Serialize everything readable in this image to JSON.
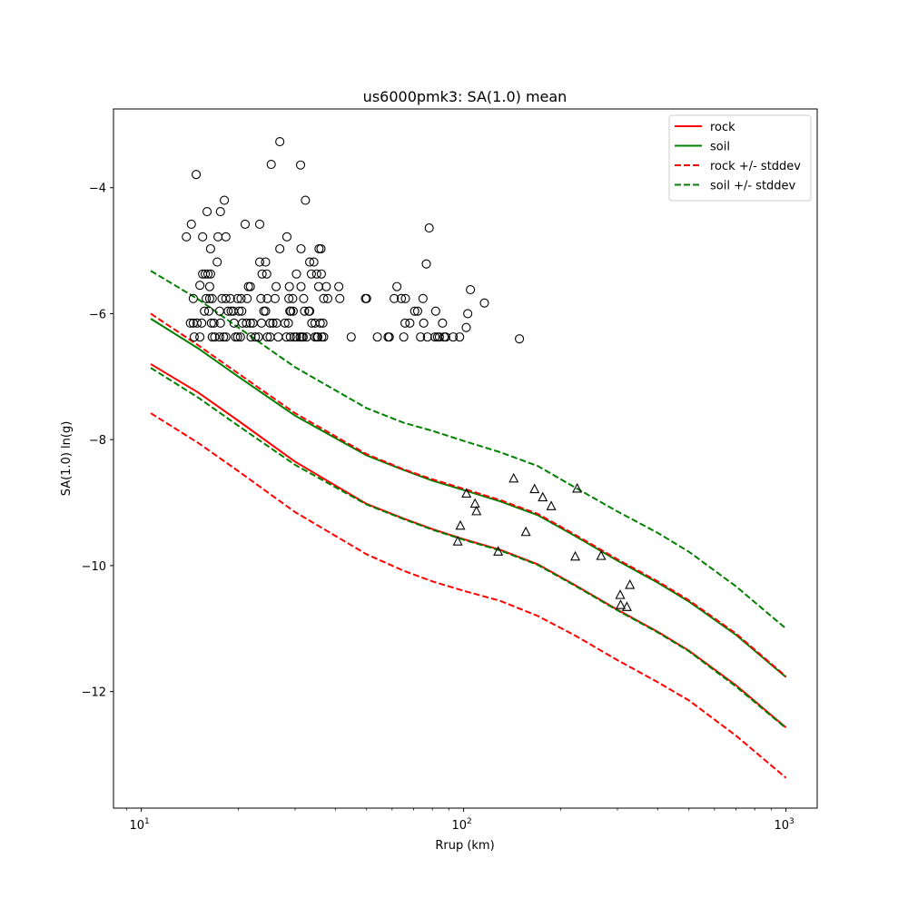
{
  "chart_data": {
    "type": "scatter",
    "title": "us6000pmk3: SA(1.0) mean",
    "xlabel": "Rrup (km)",
    "ylabel": "SA(1.0) ln(g)",
    "xscale": "log",
    "xlim": [
      8.2,
      1250
    ],
    "ylim": [
      -13.85,
      -2.75
    ],
    "xticks": [
      {
        "value": 10,
        "base": "10",
        "exp": "1"
      },
      {
        "value": 100,
        "base": "10",
        "exp": "2"
      },
      {
        "value": 1000,
        "base": "10",
        "exp": "3"
      }
    ],
    "yticks": [
      -12,
      -10,
      -8,
      -6,
      -4
    ],
    "ytick_labels": [
      "−12",
      "−10",
      "−8",
      "−6",
      "−4"
    ],
    "legend": {
      "placement": "top-right",
      "entries": [
        {
          "label": "rock",
          "color": "#ff0000",
          "style": "solid"
        },
        {
          "label": "soil",
          "color": "#008000",
          "style": "solid"
        },
        {
          "label": "rock +/- stddev",
          "color": "#ff0000",
          "style": "dashed"
        },
        {
          "label": "soil +/- stddev",
          "color": "#008000",
          "style": "dashed"
        }
      ]
    },
    "x": [
      10.7,
      15,
      20,
      30,
      50,
      65,
      80,
      100,
      130,
      170,
      220,
      300,
      400,
      500,
      700,
      1000
    ],
    "series": [
      {
        "name": "rock",
        "color": "#ff0000",
        "style": "solid",
        "y": [
          -6.8,
          -7.25,
          -7.7,
          -8.35,
          -9.02,
          -9.25,
          -9.42,
          -9.58,
          -9.75,
          -9.98,
          -10.3,
          -10.7,
          -11.05,
          -11.35,
          -11.9,
          -12.57
        ]
      },
      {
        "name": "soil",
        "color": "#008000",
        "style": "solid",
        "y": [
          -6.08,
          -6.55,
          -7.0,
          -7.62,
          -8.25,
          -8.48,
          -8.65,
          -8.8,
          -8.98,
          -9.2,
          -9.52,
          -9.92,
          -10.27,
          -10.57,
          -11.1,
          -11.77
        ]
      },
      {
        "name": "rock +/- stddev (upper)",
        "color": "#ff0000",
        "style": "dashed",
        "y": [
          -6.0,
          -6.5,
          -6.95,
          -7.58,
          -8.23,
          -8.47,
          -8.63,
          -8.78,
          -8.96,
          -9.18,
          -9.5,
          -9.9,
          -10.25,
          -10.55,
          -11.08,
          -11.76
        ]
      },
      {
        "name": "rock +/- stddev (lower)",
        "color": "#ff0000",
        "style": "dashed",
        "y": [
          -7.58,
          -8.05,
          -8.5,
          -9.15,
          -9.82,
          -10.08,
          -10.25,
          -10.4,
          -10.56,
          -10.8,
          -11.1,
          -11.5,
          -11.85,
          -12.14,
          -12.7,
          -13.37
        ]
      },
      {
        "name": "soil +/- stddev (upper)",
        "color": "#008000",
        "style": "dashed",
        "y": [
          -5.32,
          -5.77,
          -6.22,
          -6.85,
          -7.5,
          -7.73,
          -7.86,
          -8.02,
          -8.2,
          -8.42,
          -8.75,
          -9.14,
          -9.48,
          -9.78,
          -10.33,
          -11.0
        ]
      },
      {
        "name": "soil +/- stddev (lower)",
        "color": "#008000",
        "style": "dashed",
        "y": [
          -6.86,
          -7.33,
          -7.78,
          -8.4,
          -9.03,
          -9.26,
          -9.43,
          -9.59,
          -9.76,
          -9.99,
          -10.31,
          -10.71,
          -11.06,
          -11.36,
          -11.92,
          -12.58
        ]
      }
    ],
    "markers": [
      {
        "name": "observed (circle)",
        "shape": "circle",
        "points": [
          [
            13.8,
            -4.78
          ],
          [
            14.3,
            -4.58
          ],
          [
            14.8,
            -3.79
          ],
          [
            14.2,
            -6.15
          ],
          [
            14.5,
            -6.15
          ],
          [
            14.9,
            -6.15
          ],
          [
            14.6,
            -6.37
          ],
          [
            15.2,
            -6.37
          ],
          [
            14.5,
            -5.76
          ],
          [
            15.2,
            -5.55
          ],
          [
            15.5,
            -4.78
          ],
          [
            15.5,
            -5.37
          ],
          [
            15.8,
            -5.37
          ],
          [
            16.1,
            -5.37
          ],
          [
            16.4,
            -5.37
          ],
          [
            15.7,
            -5.96
          ],
          [
            15.9,
            -5.76
          ],
          [
            16.3,
            -5.76
          ],
          [
            16.6,
            -5.76
          ],
          [
            16.2,
            -5.96
          ],
          [
            16.5,
            -6.15
          ],
          [
            16.8,
            -6.15
          ],
          [
            15.4,
            -6.15
          ],
          [
            16.0,
            -4.38
          ],
          [
            16.4,
            -4.97
          ],
          [
            16.3,
            -5.57
          ],
          [
            16.6,
            -6.37
          ],
          [
            16.9,
            -6.37
          ],
          [
            17.2,
            -5.18
          ],
          [
            17.3,
            -4.78
          ],
          [
            17.6,
            -4.38
          ],
          [
            17.5,
            -5.96
          ],
          [
            17.8,
            -5.76
          ],
          [
            17.6,
            -6.15
          ],
          [
            17.5,
            -6.37
          ],
          [
            18.0,
            -6.37
          ],
          [
            18.3,
            -6.37
          ],
          [
            18.1,
            -4.2
          ],
          [
            18.3,
            -4.78
          ],
          [
            18.3,
            -5.76
          ],
          [
            18.6,
            -5.96
          ],
          [
            19.0,
            -5.96
          ],
          [
            19.3,
            -5.96
          ],
          [
            18.9,
            -5.76
          ],
          [
            19.4,
            -6.15
          ],
          [
            19.6,
            -6.37
          ],
          [
            19.9,
            -6.37
          ],
          [
            19.9,
            -5.76
          ],
          [
            20.4,
            -5.76
          ],
          [
            20.1,
            -5.96
          ],
          [
            20.5,
            -5.96
          ],
          [
            20.6,
            -6.15
          ],
          [
            20.3,
            -6.37
          ],
          [
            21.0,
            -4.58
          ],
          [
            21.3,
            -5.76
          ],
          [
            21.5,
            -5.57
          ],
          [
            21.8,
            -5.57
          ],
          [
            21.2,
            -6.15
          ],
          [
            21.8,
            -6.15
          ],
          [
            22.2,
            -6.15
          ],
          [
            21.9,
            -6.37
          ],
          [
            22.6,
            -6.37
          ],
          [
            23.1,
            -6.37
          ],
          [
            23.3,
            -4.58
          ],
          [
            23.3,
            -5.18
          ],
          [
            23.7,
            -5.37
          ],
          [
            24.5,
            -5.37
          ],
          [
            24.3,
            -5.18
          ],
          [
            23.5,
            -5.76
          ],
          [
            24.6,
            -5.76
          ],
          [
            24.0,
            -5.96
          ],
          [
            24.3,
            -5.96
          ],
          [
            23.6,
            -6.15
          ],
          [
            25.1,
            -6.15
          ],
          [
            25.6,
            -6.15
          ],
          [
            26.3,
            -6.15
          ],
          [
            24.6,
            -6.37
          ],
          [
            25.1,
            -6.37
          ],
          [
            25.3,
            -3.63
          ],
          [
            26.2,
            -5.57
          ],
          [
            26.0,
            -5.76
          ],
          [
            26.6,
            -6.37
          ],
          [
            26.9,
            -3.27
          ],
          [
            26.9,
            -4.97
          ],
          [
            27.9,
            -6.15
          ],
          [
            28.3,
            -4.78
          ],
          [
            28.6,
            -6.15
          ],
          [
            28.8,
            -5.57
          ],
          [
            28.9,
            -5.96
          ],
          [
            28.7,
            -5.76
          ],
          [
            29.1,
            -5.96
          ],
          [
            29.6,
            -5.96
          ],
          [
            29.5,
            -5.76
          ],
          [
            28.2,
            -6.37
          ],
          [
            29.0,
            -6.37
          ],
          [
            29.8,
            -6.37
          ],
          [
            30.3,
            -6.37
          ],
          [
            30.3,
            -5.37
          ],
          [
            31.1,
            -6.37
          ],
          [
            31.5,
            -6.37
          ],
          [
            31.8,
            -6.37
          ],
          [
            31.2,
            -3.64
          ],
          [
            31.3,
            -4.97
          ],
          [
            31.3,
            -5.57
          ],
          [
            31.9,
            -5.76
          ],
          [
            32.3,
            -4.2
          ],
          [
            32.1,
            -5.96
          ],
          [
            32.6,
            -6.37
          ],
          [
            33.1,
            -5.96
          ],
          [
            33.3,
            -5.96
          ],
          [
            33.3,
            -5.18
          ],
          [
            33.7,
            -5.37
          ],
          [
            34.3,
            -5.18
          ],
          [
            33.8,
            -6.15
          ],
          [
            34.6,
            -6.37
          ],
          [
            35.0,
            -5.37
          ],
          [
            34.6,
            -6.15
          ],
          [
            35.1,
            -6.37
          ],
          [
            35.3,
            -6.37
          ],
          [
            35.5,
            -5.57
          ],
          [
            35.6,
            -4.97
          ],
          [
            36.1,
            -4.97
          ],
          [
            35.9,
            -6.15
          ],
          [
            36.2,
            -5.37
          ],
          [
            36.6,
            -6.15
          ],
          [
            36.8,
            -5.76
          ],
          [
            36.3,
            -6.37
          ],
          [
            36.8,
            -6.37
          ],
          [
            37.5,
            -5.57
          ],
          [
            37.9,
            -5.76
          ],
          [
            41.0,
            -5.57
          ],
          [
            41.3,
            -5.76
          ],
          [
            44.8,
            -6.37
          ],
          [
            49.6,
            -5.76
          ],
          [
            50.0,
            -5.76
          ],
          [
            54.0,
            -6.37
          ],
          [
            58.3,
            -6.37
          ],
          [
            58.8,
            -6.37
          ],
          [
            60.9,
            -5.76
          ],
          [
            62.1,
            -5.57
          ],
          [
            64.1,
            -5.76
          ],
          [
            66.0,
            -5.76
          ],
          [
            65.8,
            -6.15
          ],
          [
            65.2,
            -6.37
          ],
          [
            68.1,
            -6.15
          ],
          [
            70.5,
            -5.96
          ],
          [
            72.0,
            -5.96
          ],
          [
            73.5,
            -6.37
          ],
          [
            74.8,
            -5.76
          ],
          [
            75.2,
            -6.15
          ],
          [
            77.2,
            -6.37
          ],
          [
            76.6,
            -5.21
          ],
          [
            78.2,
            -4.64
          ],
          [
            81.9,
            -5.96
          ],
          [
            81.5,
            -6.37
          ],
          [
            83.0,
            -6.37
          ],
          [
            84.1,
            -6.37
          ],
          [
            86.0,
            -6.15
          ],
          [
            87.0,
            -6.37
          ],
          [
            88.0,
            -6.37
          ],
          [
            92.8,
            -6.37
          ],
          [
            97.2,
            -6.37
          ],
          [
            101.9,
            -6.22
          ],
          [
            103.0,
            -6.0
          ],
          [
            105.0,
            -5.62
          ],
          [
            116.0,
            -5.83
          ],
          [
            149.0,
            -6.4
          ]
        ]
      },
      {
        "name": "observed (triangle)",
        "shape": "triangle",
        "points": [
          [
            95.9,
            -9.62
          ],
          [
            97.7,
            -9.37
          ],
          [
            102.0,
            -8.86
          ],
          [
            108.5,
            -9.02
          ],
          [
            109.6,
            -9.14
          ],
          [
            128.0,
            -9.78
          ],
          [
            143.0,
            -8.62
          ],
          [
            156.0,
            -9.47
          ],
          [
            166.0,
            -8.79
          ],
          [
            176.0,
            -8.92
          ],
          [
            187.0,
            -9.06
          ],
          [
            222.0,
            -9.86
          ],
          [
            225.0,
            -8.78
          ],
          [
            267.0,
            -9.85
          ],
          [
            306.0,
            -10.47
          ],
          [
            307.0,
            -10.63
          ],
          [
            321.0,
            -10.66
          ],
          [
            328.0,
            -10.31
          ]
        ]
      }
    ]
  }
}
